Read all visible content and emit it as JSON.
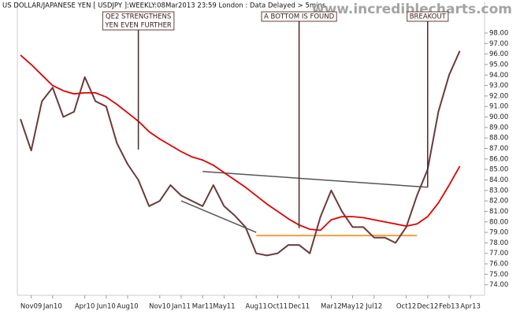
{
  "chart_data": {
    "type": "line",
    "title": "US DOLLAR/JAPANESE YEN [ USDJPY ]:WEEKLY:08Mar2013 23:59 London : Data Delayed > 5mins",
    "watermark": "www.incrediblecharts.com",
    "categories": [
      null,
      "Nov09",
      null,
      "Jan10",
      null,
      null,
      "Apr10",
      null,
      "Jun10",
      null,
      "Aug10",
      null,
      null,
      "Nov10",
      null,
      "Jan11",
      null,
      "Mar11",
      null,
      "May11",
      null,
      null,
      "Aug11",
      null,
      "Oct11",
      null,
      "Dec11",
      null,
      null,
      "Mar12",
      null,
      "May12",
      null,
      "Jul12",
      null,
      null,
      "Oct12",
      null,
      "Dec12",
      null,
      "Feb13",
      null,
      "Apr13"
    ],
    "series": [
      {
        "color": "#6b3a3a",
        "values": [
          89.8,
          86.8,
          91.5,
          92.8,
          90.0,
          90.5,
          93.8,
          91.5,
          91.0,
          87.5,
          85.5,
          84.0,
          81.5,
          82.0,
          83.5,
          82.5,
          82.0,
          81.5,
          83.5,
          81.5,
          80.6,
          79.5,
          77.0,
          76.8,
          77.0,
          77.8,
          77.8,
          77.0,
          80.5,
          83.0,
          81.0,
          79.5,
          79.5,
          78.5,
          78.5,
          78.0,
          79.5,
          82.5,
          85.0,
          90.5,
          94.0,
          96.3,
          null
        ]
      },
      {
        "color": "#e00000",
        "values": [
          95.9,
          95.0,
          94.0,
          93.0,
          92.5,
          92.2,
          92.3,
          92.3,
          91.9,
          91.2,
          90.4,
          89.6,
          88.6,
          87.9,
          87.3,
          86.7,
          86.2,
          85.9,
          85.4,
          84.7,
          84.0,
          83.3,
          82.5,
          81.7,
          81.0,
          80.3,
          79.7,
          79.3,
          79.2,
          80.2,
          80.5,
          80.5,
          80.4,
          80.2,
          80.0,
          79.8,
          79.6,
          79.8,
          80.5,
          81.8,
          83.5,
          85.3,
          null
        ]
      }
    ],
    "trendlines": [
      {
        "color": "#555555",
        "x": [
          "Jan11",
          "Aug11"
        ],
        "values": [
          82.0,
          79.0
        ]
      },
      {
        "color": "#555555",
        "x": [
          "Mar11",
          "Dec12"
        ],
        "values": [
          84.8,
          83.3
        ]
      },
      {
        "color": "#ff8000",
        "x": [
          "Aug11",
          "Nov12"
        ],
        "values": [
          78.7,
          78.7
        ]
      }
    ],
    "annotations": [
      {
        "text": [
          "QE2 STRENGTHENS",
          "YEN EVEN FURTHER"
        ],
        "x": "Sep10",
        "value": 86.9
      },
      {
        "text": [
          "A BOTTOM IS FOUND"
        ],
        "x": "Dec11",
        "value": 79.4
      },
      {
        "text": [
          "BREAKOUT"
        ],
        "x": "Dec12",
        "value": 83.3
      }
    ],
    "ylim": [
      73,
      101
    ],
    "yticks": [
      {
        "value": 74,
        "label": "74.00"
      },
      {
        "value": 75,
        "label": "75.00"
      },
      {
        "value": 76,
        "label": "76.00"
      },
      {
        "value": 77,
        "label": "77.00"
      },
      {
        "value": 78,
        "label": "78.00"
      },
      {
        "value": 79,
        "label": "79.00"
      },
      {
        "value": 80,
        "label": "80.00"
      },
      {
        "value": 81,
        "label": "81.00"
      },
      {
        "value": 82,
        "label": "82.00"
      },
      {
        "value": 83,
        "label": "83.00"
      },
      {
        "value": 84,
        "label": "84.00"
      },
      {
        "value": 85,
        "label": "85.00"
      },
      {
        "value": 86,
        "label": "86.00"
      },
      {
        "value": 87,
        "label": "87.00"
      },
      {
        "value": 88,
        "label": "88.00"
      },
      {
        "value": 89,
        "label": "89.00"
      },
      {
        "value": 90,
        "label": "90.00"
      },
      {
        "value": 91,
        "label": "91.00"
      },
      {
        "value": 92,
        "label": "92.00"
      },
      {
        "value": 93,
        "label": "93.00"
      },
      {
        "value": 94,
        "label": "94.00"
      },
      {
        "value": 95,
        "label": "95.00"
      },
      {
        "value": 96,
        "label": "96.00"
      },
      {
        "value": 97,
        "label": "97.00"
      },
      {
        "value": 98,
        "label": "98.00"
      }
    ]
  }
}
